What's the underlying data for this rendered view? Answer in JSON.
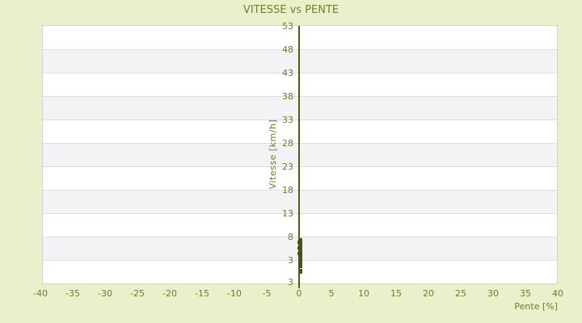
{
  "title": "VITESSE vs PENTE",
  "colors": {
    "background": "#ecefcb",
    "text_olive": "#6f7d28",
    "axis_line": "#505c15",
    "point": "#4a5411",
    "band_gray": "#f3f3f5",
    "band_white": "#ffffff",
    "gridline": "#dddde0",
    "plot_border": "#d4d4d4"
  },
  "chart_data": {
    "type": "scatter",
    "title": "VITESSE vs PENTE",
    "xlabel": "Pente [%]",
    "ylabel": "Vitesse [km/h]",
    "xlim": [
      -40,
      40
    ],
    "ylim": [
      -3,
      53
    ],
    "x_ticks": [
      -40,
      -35,
      -30,
      -25,
      -20,
      -15,
      -10,
      -5,
      0,
      5,
      10,
      15,
      20,
      25,
      30,
      35,
      40
    ],
    "y_tick_labels_top_to_bottom": [
      "53",
      "48",
      "43",
      "38",
      "33",
      "28",
      "23",
      "18",
      "13",
      "8",
      "3"
    ],
    "y_axis_bottom_label": "3",
    "grid": "horizontal-bands-alternating-white-gray",
    "legend": null,
    "points_pente_vitesse": [
      [
        0,
        6.9
      ],
      [
        0.1,
        6.6
      ],
      [
        -0.1,
        6.3
      ],
      [
        0,
        6.0
      ],
      [
        0.1,
        5.7
      ],
      [
        0,
        5.4
      ],
      [
        -0.1,
        5.1
      ],
      [
        0,
        4.8
      ],
      [
        0.1,
        4.5
      ],
      [
        0,
        4.2
      ],
      [
        -0.1,
        3.9
      ],
      [
        0,
        3.6
      ],
      [
        0.1,
        3.3
      ],
      [
        0,
        3.0
      ],
      [
        0,
        2.7
      ],
      [
        0.1,
        2.4
      ],
      [
        0,
        2.2
      ],
      [
        0,
        1.5
      ],
      [
        0.1,
        1.2
      ],
      [
        0,
        1.0
      ],
      [
        0,
        0.2
      ],
      [
        0,
        -0.1
      ]
    ]
  }
}
